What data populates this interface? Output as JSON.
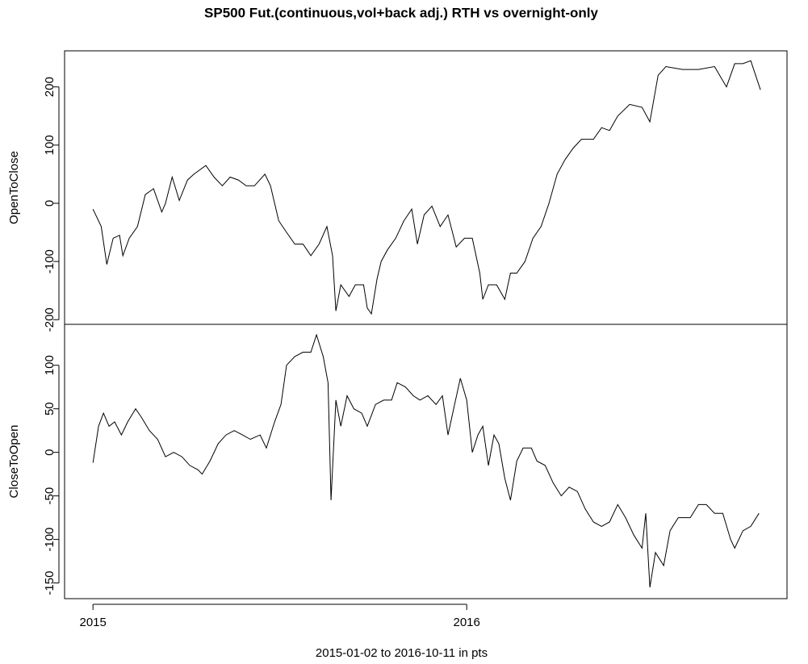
{
  "chart_data": [
    {
      "type": "line",
      "title": "SP500 Fut.(continuous,vol+back adj.) RTH vs overnight-only",
      "ylabel": "OpenToClose",
      "color": "#000000",
      "xlim": [
        2014.924,
        2016.857
      ],
      "ylim": [
        -208,
        262
      ],
      "yticks": [
        -200,
        -100,
        0,
        100,
        200
      ],
      "x": [
        2015.0,
        2015.022,
        2015.037,
        2015.054,
        2015.071,
        2015.08,
        2015.097,
        2015.119,
        2015.14,
        2015.162,
        2015.184,
        2015.194,
        2015.212,
        2015.231,
        2015.253,
        2015.27,
        2015.302,
        2015.324,
        2015.346,
        2015.367,
        2015.389,
        2015.41,
        2015.432,
        2015.46,
        2015.475,
        2015.497,
        2015.518,
        2015.54,
        2015.562,
        2015.583,
        2015.605,
        2015.626,
        2015.641,
        2015.65,
        2015.663,
        2015.685,
        2015.702,
        2015.724,
        2015.734,
        2015.745,
        2015.76,
        2015.771,
        2015.788,
        2015.81,
        2015.832,
        2015.853,
        2015.868,
        2015.886,
        2015.907,
        2015.929,
        2015.95,
        2015.972,
        2015.994,
        2016.015,
        2016.035,
        2016.043,
        2016.058,
        2016.08,
        2016.102,
        2016.117,
        2016.134,
        2016.156,
        2016.177,
        2016.199,
        2016.22,
        2016.242,
        2016.263,
        2016.285,
        2016.307,
        2016.339,
        2016.361,
        2016.382,
        2016.404,
        2016.436,
        2016.469,
        2016.49,
        2016.512,
        2016.533,
        2016.577,
        2016.62,
        2016.663,
        2016.695,
        2016.717,
        2016.739,
        2016.76,
        2016.786
      ],
      "values": [
        -10,
        -40,
        -105,
        -60,
        -55,
        -90,
        -60,
        -40,
        15,
        25,
        -15,
        0,
        45,
        5,
        40,
        50,
        65,
        45,
        30,
        45,
        40,
        30,
        30,
        50,
        30,
        -30,
        -50,
        -70,
        -70,
        -90,
        -70,
        -40,
        -90,
        -185,
        -140,
        -160,
        -140,
        -140,
        -180,
        -190,
        -130,
        -100,
        -80,
        -60,
        -30,
        -10,
        -70,
        -20,
        -5,
        -40,
        -20,
        -75,
        -60,
        -60,
        -120,
        -165,
        -140,
        -140,
        -165,
        -120,
        -120,
        -100,
        -60,
        -40,
        0,
        50,
        75,
        95,
        110,
        110,
        130,
        125,
        150,
        170,
        165,
        140,
        220,
        235,
        230,
        230,
        235,
        200,
        240,
        240,
        245,
        195
      ]
    },
    {
      "type": "line",
      "ylabel": "CloseToOpen",
      "xlabel": "2015-01-02 to 2016-10-11   in pts",
      "color": "#000000",
      "xlim": [
        2014.924,
        2016.857
      ],
      "ylim": [
        -168,
        147
      ],
      "yticks": [
        -150,
        -100,
        -50,
        0,
        50,
        100
      ],
      "xticks": [
        2015,
        2016
      ],
      "x": [
        2015.0,
        2015.015,
        2015.028,
        2015.043,
        2015.058,
        2015.076,
        2015.093,
        2015.114,
        2015.13,
        2015.151,
        2015.173,
        2015.194,
        2015.216,
        2015.238,
        2015.259,
        2015.281,
        2015.292,
        2015.313,
        2015.335,
        2015.356,
        2015.378,
        2015.4,
        2015.421,
        2015.447,
        2015.464,
        2015.486,
        2015.503,
        2015.518,
        2015.54,
        2015.562,
        2015.583,
        2015.598,
        2015.616,
        2015.629,
        2015.637,
        2015.65,
        2015.663,
        2015.68,
        2015.698,
        2015.719,
        2015.734,
        2015.756,
        2015.778,
        2015.799,
        2015.814,
        2015.836,
        2015.857,
        2015.875,
        2015.896,
        2015.918,
        2015.935,
        2015.95,
        2015.965,
        2015.983,
        2016.0,
        2016.015,
        2016.03,
        2016.043,
        2016.058,
        2016.073,
        2016.086,
        2016.102,
        2016.117,
        2016.134,
        2016.151,
        2016.173,
        2016.188,
        2016.21,
        2016.231,
        2016.253,
        2016.274,
        2016.296,
        2016.317,
        2016.339,
        2016.361,
        2016.382,
        2016.404,
        2016.425,
        2016.447,
        2016.469,
        2016.479,
        2016.49,
        2016.505,
        2016.527,
        2016.544,
        2016.566,
        2016.598,
        2016.62,
        2016.641,
        2016.663,
        2016.685,
        2016.706,
        2016.717,
        2016.739,
        2016.76,
        2016.782
      ],
      "values": [
        -12,
        30,
        45,
        30,
        35,
        20,
        35,
        50,
        40,
        25,
        15,
        -5,
        0,
        -5,
        -15,
        -20,
        -25,
        -10,
        10,
        20,
        25,
        20,
        15,
        20,
        5,
        35,
        55,
        100,
        110,
        115,
        115,
        135,
        110,
        80,
        -55,
        60,
        30,
        65,
        50,
        45,
        30,
        55,
        60,
        60,
        80,
        75,
        65,
        60,
        65,
        55,
        65,
        20,
        50,
        85,
        60,
        0,
        20,
        30,
        -15,
        20,
        10,
        -30,
        -55,
        -10,
        5,
        5,
        -10,
        -15,
        -35,
        -50,
        -40,
        -45,
        -65,
        -80,
        -85,
        -80,
        -60,
        -75,
        -95,
        -110,
        -70,
        -155,
        -115,
        -130,
        -90,
        -75,
        -75,
        -60,
        -60,
        -70,
        -70,
        -100,
        -110,
        -90,
        -85,
        -70
      ]
    }
  ]
}
